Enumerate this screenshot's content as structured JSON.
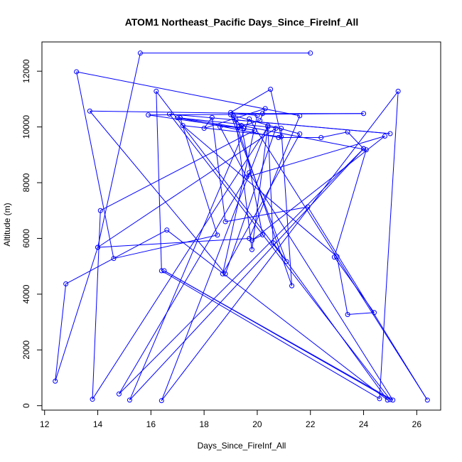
{
  "chart_data": {
    "type": "scatter",
    "title": "ATOM1 Northeast_Pacific Days_Since_FireInf_All",
    "xlabel": "Days_Since_FireInf_All",
    "ylabel": "Altitude (m)",
    "xlim": [
      11.9,
      26.9
    ],
    "ylim": [
      -160,
      13050
    ],
    "xticks": [
      12,
      14,
      16,
      18,
      20,
      22,
      24,
      26
    ],
    "yticks": [
      0,
      2000,
      4000,
      6000,
      8000,
      10000,
      12000
    ],
    "grid": false,
    "point_style": "open-circle",
    "line_connected": true,
    "color": "#0000ff",
    "series": [
      {
        "x": [
          22.0,
          15.6,
          14.0,
          12.4,
          12.8,
          16.6,
          24.9,
          20.6,
          20.4,
          13.8,
          14.1,
          19.9,
          15.9,
          24.0,
          20.2,
          13.7,
          18.8,
          20.7,
          14.0,
          19.7,
          21.6,
          13.2,
          14.6,
          18.5,
          17.1,
          19.5,
          19.0,
          21.1,
          16.2,
          16.4,
          24.6,
          25.3,
          16.4,
          20.4,
          19.8,
          19.2,
          25.0,
          16.7,
          25.0,
          16.5,
          25.1,
          19.7,
          14.8,
          24.0,
          23.4,
          22.4,
          20.8,
          17.0,
          20.9,
          21.3,
          19.1,
          21.6,
          18.7,
          20.0,
          19.0,
          20.5,
          20.9,
          17.2,
          23.0,
          23.4,
          24.4,
          22.9,
          24.1,
          19.4,
          20.2,
          19.8,
          24.8,
          19.6,
          18.6,
          19.3,
          20.1,
          20.3,
          18.0,
          18.3,
          18.8,
          21.9,
          26.4,
          19.7,
          15.2,
          24.0
        ],
        "y": [
          12650,
          12650,
          5680,
          880,
          4370,
          6300,
          200,
          5840,
          10000,
          230,
          7000,
          9880,
          10430,
          10480,
          10480,
          10570,
          4730,
          9950,
          5680,
          6000,
          10400,
          11980,
          5280,
          6120,
          10330,
          9950,
          10440,
          5170,
          11280,
          4840,
          250,
          11280,
          180,
          10050,
          5600,
          10250,
          9760,
          10460,
          220,
          4840,
          200,
          8360,
          420,
          9220,
          9820,
          9620,
          9620,
          10330,
          9950,
          4300,
          10410,
          9750,
          4730,
          10410,
          10520,
          11350,
          9650,
          10050,
          5350,
          3270,
          3340,
          5330,
          9180,
          10050,
          6130,
          5930,
          9670,
          8200,
          10010,
          10000,
          10230,
          10660,
          9950,
          10340,
          6600,
          7130,
          200,
          10290,
          200,
          9220
        ]
      }
    ]
  }
}
